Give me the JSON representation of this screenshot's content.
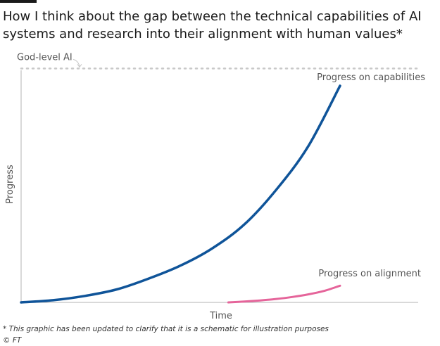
{
  "header": {
    "title": "How I think about the gap between the technical capabilities of AI systems and research into their alignment with human values*"
  },
  "colors": {
    "capabilities": "#0f5499",
    "alignment": "#e5649a",
    "axis": "#b3b3b3",
    "ceiling": "#c8c8c8",
    "label": "#555555"
  },
  "chart_data": {
    "type": "line",
    "xlabel": "Time",
    "ylabel": "Progress",
    "xlim": [
      0,
      100
    ],
    "ylim": [
      0,
      100
    ],
    "grid": false,
    "ceiling": {
      "label": "God-level AI",
      "y": 108
    },
    "series": [
      {
        "name": "Progress on capabilities",
        "x": [
          0,
          10,
          20,
          30,
          40,
          50,
          60,
          70,
          80,
          90,
          100
        ],
        "y": [
          0,
          1,
          3,
          6,
          11,
          17,
          25,
          36,
          52,
          72,
          100
        ]
      },
      {
        "name": "Progress on alignment",
        "x": [
          65,
          70,
          75,
          80,
          85,
          90,
          95,
          100
        ],
        "y": [
          0,
          0.4,
          0.9,
          1.6,
          2.5,
          3.7,
          5.3,
          7.7
        ]
      }
    ]
  },
  "footer": {
    "note": "* This graphic has been updated to clarify that it is a schematic for illustration purposes",
    "source": "© FT"
  }
}
